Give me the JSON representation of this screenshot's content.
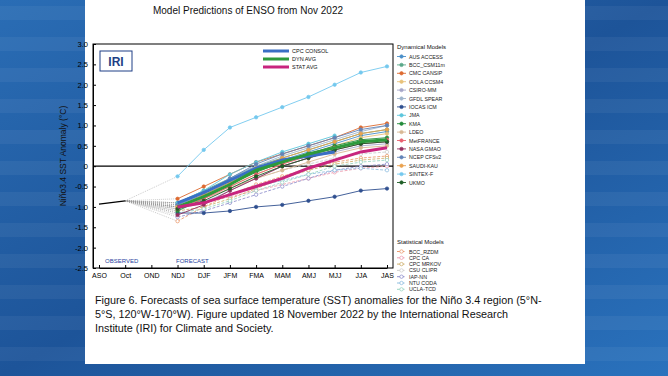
{
  "chart_data": {
    "type": "line",
    "title": "Model Predictions of ENSO from Nov 2022",
    "y_label": "Niño3.4 SST Anomaly (°C)",
    "logo": "IRI",
    "observed_label": "OBSERVED",
    "forecast_label": "FORECAST",
    "caption": [
      "Figure 6. Forecasts of sea surface temperature (SST) anomalies for the Niño 3.4 region (5°N-",
      "5°S, 120°W-170°W). Figure updated 18 November 2022 by the International Research",
      "Institute (IRI) for Climate and Society."
    ],
    "categories": [
      "ASO",
      "Oct",
      "OND",
      "NDJ",
      "DJF",
      "JFM",
      "FMA",
      "MAM",
      "AMJ",
      "MJJ",
      "JJA",
      "JAS"
    ],
    "ylim": [
      -2.5,
      3.0
    ],
    "yticks": [
      -2.5,
      {
        "value": -2.0,
        "label": "-2.0"
      },
      -1.5,
      {
        "value": -1.0,
        "label": "-1.0"
      },
      -0.5,
      0,
      0.5,
      {
        "value": 1.0,
        "label": "1.0"
      },
      1.5,
      {
        "value": 2.0,
        "label": "2.0"
      },
      2.5,
      {
        "value": 3.0,
        "label": "3.0"
      }
    ],
    "hline": 0,
    "grid": false,
    "observed": {
      "color": "#000000",
      "values": [
        -0.93,
        -0.85,
        null,
        null,
        null,
        null,
        null,
        null,
        null,
        null,
        null,
        null
      ]
    },
    "series": [
      {
        "name": "CPC CONSOL",
        "color": "#3a6fc4",
        "marker": "none",
        "line_style": "solid",
        "values": [
          null,
          null,
          null,
          -0.9,
          -0.65,
          -0.35,
          -0.05,
          0.15,
          0.25,
          0.35,
          null,
          null
        ]
      },
      {
        "name": "DYN AVG",
        "color": "#2e9a3c",
        "marker": "none",
        "line_style": "solid",
        "values": [
          null,
          null,
          null,
          -1.0,
          -0.75,
          -0.45,
          -0.1,
          0.1,
          0.3,
          0.45,
          0.6,
          0.65
        ]
      },
      {
        "name": "STAT AVG",
        "color": "#c8257e",
        "marker": "none",
        "line_style": "solid",
        "values": [
          null,
          null,
          null,
          -1.0,
          -0.9,
          -0.7,
          -0.5,
          -0.3,
          -0.05,
          0.15,
          0.35,
          0.45
        ]
      }
    ],
    "dynamical": {
      "title": "Dynamical Models",
      "series": [
        {
          "name": "AUS ACCESS",
          "color": "#4a8fc9",
          "marker": "circle",
          "line_style": "solid",
          "values": [
            null,
            null,
            null,
            -0.95,
            -0.7,
            -0.4,
            -0.1,
            0.15,
            0.35,
            0.55,
            0.75,
            0.85
          ]
        },
        {
          "name": "BCC_CSM11m",
          "color": "#5aa88a",
          "marker": "circle",
          "line_style": "solid",
          "values": [
            null,
            null,
            null,
            -0.9,
            -0.6,
            -0.3,
            0.0,
            0.2,
            0.4,
            0.6,
            0.8,
            0.9
          ]
        },
        {
          "name": "CMC CANSIP",
          "color": "#dd6a30",
          "marker": "circle",
          "line_style": "solid",
          "values": [
            null,
            null,
            null,
            -0.8,
            -0.5,
            -0.2,
            0.1,
            0.3,
            0.5,
            0.7,
            0.95,
            1.05
          ]
        },
        {
          "name": "COLA CCSM4",
          "color": "#e8c27a",
          "marker": "circle",
          "line_style": "solid",
          "values": [
            null,
            null,
            null,
            -1.0,
            -0.75,
            -0.5,
            -0.2,
            0.05,
            0.3,
            0.5,
            0.7,
            0.8
          ]
        },
        {
          "name": "CSIRO-MM",
          "color": "#a6a6c8",
          "marker": "circle",
          "line_style": "solid",
          "values": [
            null,
            null,
            null,
            -1.05,
            -0.9,
            -0.6,
            -0.3,
            0.0,
            0.2,
            0.35,
            0.5,
            0.55
          ]
        },
        {
          "name": "GFDL SPEAR",
          "color": "#9fb4cc",
          "marker": "circle",
          "line_style": "solid",
          "values": [
            null,
            null,
            null,
            -0.95,
            -0.65,
            -0.3,
            0.0,
            0.25,
            0.45,
            0.65,
            0.85,
            1.0
          ]
        },
        {
          "name": "IOCAS ICM",
          "color": "#2f4f8f",
          "marker": "circle",
          "line_style": "solid",
          "values": [
            null,
            null,
            null,
            -1.15,
            -1.15,
            -1.1,
            -1.0,
            -0.95,
            -0.85,
            -0.75,
            -0.6,
            -0.55
          ]
        },
        {
          "name": "JMA",
          "color": "#5cc6dc",
          "marker": "circle",
          "line_style": "solid",
          "values": [
            null,
            null,
            null,
            -0.9,
            -0.6,
            -0.2,
            0.1,
            0.35,
            0.55,
            0.75,
            null,
            null
          ]
        },
        {
          "name": "KMA",
          "color": "#238a3a",
          "marker": "circle",
          "line_style": "solid",
          "values": [
            null,
            null,
            null,
            -1.1,
            -0.8,
            -0.45,
            -0.15,
            0.1,
            0.3,
            0.5,
            0.65,
            0.7
          ]
        },
        {
          "name": "LDEO",
          "color": "#d9b894",
          "marker": "circle",
          "line_style": "solid",
          "values": [
            null,
            null,
            null,
            -1.0,
            -0.8,
            -0.55,
            -0.3,
            -0.1,
            0.1,
            0.3,
            0.45,
            0.5
          ]
        },
        {
          "name": "MetFRANCE",
          "color": "#e8606f",
          "marker": "circle",
          "line_style": "solid",
          "values": [
            null,
            null,
            null,
            -1.05,
            -0.8,
            -0.5,
            -0.2,
            0.05,
            0.25,
            0.45,
            0.6,
            0.65
          ]
        },
        {
          "name": "NASA GMAO",
          "color": "#94305f",
          "marker": "circle",
          "line_style": "solid",
          "values": [
            null,
            null,
            null,
            -1.2,
            -0.95,
            -0.6,
            -0.3,
            0.0,
            0.2,
            0.4,
            0.55,
            0.6
          ]
        },
        {
          "name": "NCEP CFSv2",
          "color": "#6384b8",
          "marker": "circle",
          "line_style": "solid",
          "values": [
            null,
            null,
            null,
            -0.95,
            -0.65,
            -0.3,
            0.05,
            0.3,
            0.5,
            0.7,
            0.9,
            1.0
          ]
        },
        {
          "name": "SAUDI-KAU",
          "color": "#e9a24f",
          "marker": "circle",
          "line_style": "solid",
          "values": [
            null,
            null,
            null,
            -1.0,
            -0.7,
            -0.4,
            -0.05,
            0.2,
            0.4,
            0.6,
            0.8,
            0.9
          ]
        },
        {
          "name": "SINTEX-F",
          "color": "#74c8ee",
          "marker": "circle",
          "line_style": "solid",
          "values": [
            null,
            null,
            null,
            -0.25,
            0.4,
            0.95,
            1.2,
            1.45,
            1.7,
            2.0,
            2.3,
            2.45
          ]
        },
        {
          "name": "UKMO",
          "color": "#1f5e26",
          "marker": "circle",
          "line_style": "solid",
          "values": [
            null,
            null,
            null,
            -1.05,
            -0.85,
            -0.55,
            -0.25,
            0.0,
            0.2,
            0.4,
            0.55,
            0.6
          ]
        }
      ]
    },
    "statistical": {
      "title": "Statistical Models",
      "series": [
        {
          "name": "BCC_RZDM",
          "color": "#ea9060",
          "marker": "open-circle",
          "line_style": "dashed",
          "values": [
            null,
            null,
            null,
            -1.35,
            -1.0,
            -0.7,
            -0.45,
            -0.25,
            -0.05,
            0.1,
            0.2,
            0.25
          ]
        },
        {
          "name": "CPC CA",
          "color": "#ec94a8",
          "marker": "open-circle",
          "line_style": "dashed",
          "values": [
            null,
            null,
            null,
            -1.0,
            -0.9,
            -0.75,
            -0.6,
            -0.45,
            -0.3,
            -0.15,
            -0.05,
            0.0
          ]
        },
        {
          "name": "CPC MRKOV",
          "color": "#c9a860",
          "marker": "open-circle",
          "line_style": "dashed",
          "values": [
            null,
            null,
            null,
            -1.1,
            -1.0,
            -0.8,
            -0.55,
            -0.3,
            -0.1,
            0.05,
            0.15,
            0.2
          ]
        },
        {
          "name": "CSU CLIPR",
          "color": "#c8c8c8",
          "marker": "open-circle",
          "line_style": "dashed",
          "values": [
            null,
            null,
            null,
            -0.9,
            -0.7,
            -0.5,
            -0.3,
            -0.1,
            0.05,
            0.2,
            0.3,
            0.35
          ]
        },
        {
          "name": "IAP-NN",
          "color": "#8585c8",
          "marker": "open-circle",
          "line_style": "dashed",
          "values": [
            null,
            null,
            null,
            -1.25,
            -1.1,
            -0.9,
            -0.7,
            -0.5,
            -0.3,
            -0.1,
            0.0,
            0.05
          ]
        },
        {
          "name": "NTU CODA",
          "color": "#85b8dc",
          "marker": "open-circle",
          "line_style": "dashed",
          "values": [
            null,
            null,
            null,
            -1.0,
            -0.85,
            -0.7,
            -0.5,
            -0.35,
            -0.2,
            -0.1,
            -0.05,
            -0.1
          ]
        },
        {
          "name": "UCLA-TCD",
          "color": "#8fd0bc",
          "marker": "open-circle",
          "line_style": "dashed",
          "values": [
            null,
            null,
            null,
            -1.15,
            -1.05,
            -0.85,
            -0.6,
            -0.4,
            -0.2,
            0.0,
            0.1,
            0.15
          ]
        }
      ]
    }
  }
}
